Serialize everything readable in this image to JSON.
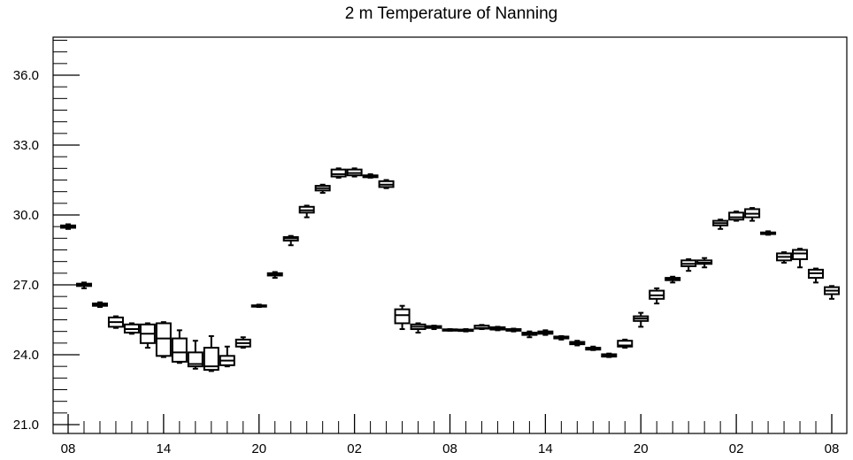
{
  "chart_data": {
    "type": "boxplot",
    "title": "2 m Temperature of Nanning",
    "xlabel": "",
    "ylabel": "",
    "ylim": [
      21.0,
      37.5
    ],
    "yticks": [
      21.0,
      24.0,
      27.0,
      30.0,
      33.0,
      36.0
    ],
    "ytick_labels": [
      "21.0",
      "24.0",
      "27.0",
      "30.0",
      "33.0",
      "36.0"
    ],
    "xlim": [
      0,
      48
    ],
    "xticks": [
      0,
      6,
      12,
      18,
      24,
      30,
      36,
      42,
      48
    ],
    "xtick_labels": [
      "08",
      "14",
      "20",
      "02",
      "08",
      "14",
      "20",
      "02",
      "08"
    ],
    "grid": false,
    "boxes": [
      {
        "x": 0,
        "min": 29.4,
        "q1": 29.45,
        "median": 29.5,
        "q3": 29.55,
        "max": 29.6
      },
      {
        "x": 1,
        "min": 26.85,
        "q1": 26.95,
        "median": 27.0,
        "q3": 27.05,
        "max": 27.1
      },
      {
        "x": 2,
        "min": 26.05,
        "q1": 26.1,
        "median": 26.15,
        "q3": 26.2,
        "max": 26.25
      },
      {
        "x": 3,
        "min": 25.15,
        "q1": 25.2,
        "median": 25.4,
        "q3": 25.6,
        "max": 25.65
      },
      {
        "x": 4,
        "min": 24.9,
        "q1": 24.95,
        "median": 25.1,
        "q3": 25.3,
        "max": 25.35
      },
      {
        "x": 5,
        "min": 24.3,
        "q1": 24.5,
        "median": 24.9,
        "q3": 25.3,
        "max": 25.35
      },
      {
        "x": 6,
        "min": 23.9,
        "q1": 23.95,
        "median": 24.7,
        "q3": 25.35,
        "max": 25.4
      },
      {
        "x": 7,
        "min": 23.65,
        "q1": 23.7,
        "median": 24.1,
        "q3": 24.7,
        "max": 25.05
      },
      {
        "x": 8,
        "min": 23.4,
        "q1": 23.5,
        "median": 23.6,
        "q3": 24.1,
        "max": 24.6
      },
      {
        "x": 9,
        "min": 23.3,
        "q1": 23.35,
        "median": 23.5,
        "q3": 24.3,
        "max": 24.8
      },
      {
        "x": 10,
        "min": 23.5,
        "q1": 23.55,
        "median": 23.75,
        "q3": 23.95,
        "max": 24.35
      },
      {
        "x": 11,
        "min": 24.3,
        "q1": 24.35,
        "median": 24.5,
        "q3": 24.65,
        "max": 24.75
      },
      {
        "x": 12,
        "min": 26.05,
        "q1": 26.08,
        "median": 26.1,
        "q3": 26.12,
        "max": 26.15
      },
      {
        "x": 13,
        "min": 27.3,
        "q1": 27.4,
        "median": 27.45,
        "q3": 27.5,
        "max": 27.55
      },
      {
        "x": 14,
        "min": 28.7,
        "q1": 28.9,
        "median": 29.0,
        "q3": 29.05,
        "max": 29.1
      },
      {
        "x": 15,
        "min": 29.9,
        "q1": 30.1,
        "median": 30.2,
        "q3": 30.35,
        "max": 30.4
      },
      {
        "x": 16,
        "min": 30.95,
        "q1": 31.05,
        "median": 31.15,
        "q3": 31.25,
        "max": 31.3
      },
      {
        "x": 17,
        "min": 31.6,
        "q1": 31.65,
        "median": 31.75,
        "q3": 31.95,
        "max": 32.0
      },
      {
        "x": 18,
        "min": 31.65,
        "q1": 31.7,
        "median": 31.8,
        "q3": 31.95,
        "max": 32.0
      },
      {
        "x": 19,
        "min": 31.6,
        "q1": 31.62,
        "median": 31.65,
        "q3": 31.7,
        "max": 31.75
      },
      {
        "x": 20,
        "min": 31.15,
        "q1": 31.2,
        "median": 31.3,
        "q3": 31.45,
        "max": 31.5
      },
      {
        "x": 21,
        "min": 25.1,
        "q1": 25.35,
        "median": 25.7,
        "q3": 25.95,
        "max": 26.1
      },
      {
        "x": 22,
        "min": 24.95,
        "q1": 25.1,
        "median": 25.2,
        "q3": 25.3,
        "max": 25.35
      },
      {
        "x": 23,
        "min": 25.1,
        "q1": 25.15,
        "median": 25.2,
        "q3": 25.23,
        "max": 25.25
      },
      {
        "x": 24,
        "min": 25.03,
        "q1": 25.05,
        "median": 25.07,
        "q3": 25.09,
        "max": 25.1
      },
      {
        "x": 25,
        "min": 25.0,
        "q1": 25.02,
        "median": 25.05,
        "q3": 25.08,
        "max": 25.1
      },
      {
        "x": 26,
        "min": 25.1,
        "q1": 25.12,
        "median": 25.15,
        "q3": 25.25,
        "max": 25.28
      },
      {
        "x": 27,
        "min": 25.05,
        "q1": 25.08,
        "median": 25.12,
        "q3": 25.18,
        "max": 25.2
      },
      {
        "x": 28,
        "min": 25.0,
        "q1": 25.03,
        "median": 25.05,
        "q3": 25.1,
        "max": 25.12
      },
      {
        "x": 29,
        "min": 24.75,
        "q1": 24.85,
        "median": 24.9,
        "q3": 24.95,
        "max": 25.0
      },
      {
        "x": 30,
        "min": 24.85,
        "q1": 24.9,
        "median": 24.95,
        "q3": 25.0,
        "max": 25.05
      },
      {
        "x": 31,
        "min": 24.65,
        "q1": 24.7,
        "median": 24.75,
        "q3": 24.78,
        "max": 24.8
      },
      {
        "x": 32,
        "min": 24.4,
        "q1": 24.45,
        "median": 24.5,
        "q3": 24.55,
        "max": 24.6
      },
      {
        "x": 33,
        "min": 24.2,
        "q1": 24.22,
        "median": 24.25,
        "q3": 24.3,
        "max": 24.35
      },
      {
        "x": 34,
        "min": 23.9,
        "q1": 23.92,
        "median": 23.95,
        "q3": 24.02,
        "max": 24.05
      },
      {
        "x": 35,
        "min": 24.3,
        "q1": 24.35,
        "median": 24.4,
        "q3": 24.6,
        "max": 24.65
      },
      {
        "x": 36,
        "min": 25.2,
        "q1": 25.45,
        "median": 25.55,
        "q3": 25.65,
        "max": 25.8
      },
      {
        "x": 37,
        "min": 26.2,
        "q1": 26.4,
        "median": 26.55,
        "q3": 26.75,
        "max": 26.85
      },
      {
        "x": 38,
        "min": 27.1,
        "q1": 27.2,
        "median": 27.25,
        "q3": 27.3,
        "max": 27.35
      },
      {
        "x": 39,
        "min": 27.6,
        "q1": 27.8,
        "median": 27.9,
        "q3": 28.05,
        "max": 28.1
      },
      {
        "x": 40,
        "min": 27.75,
        "q1": 27.9,
        "median": 27.95,
        "q3": 28.05,
        "max": 28.15
      },
      {
        "x": 41,
        "min": 29.4,
        "q1": 29.55,
        "median": 29.65,
        "q3": 29.75,
        "max": 29.8
      },
      {
        "x": 42,
        "min": 29.75,
        "q1": 29.8,
        "median": 29.9,
        "q3": 30.1,
        "max": 30.15
      },
      {
        "x": 43,
        "min": 29.75,
        "q1": 29.9,
        "median": 30.05,
        "q3": 30.25,
        "max": 30.3
      },
      {
        "x": 44,
        "min": 29.15,
        "q1": 29.18,
        "median": 29.2,
        "q3": 29.25,
        "max": 29.3
      },
      {
        "x": 45,
        "min": 27.95,
        "q1": 28.05,
        "median": 28.2,
        "q3": 28.35,
        "max": 28.4
      },
      {
        "x": 46,
        "min": 27.75,
        "q1": 28.1,
        "median": 28.35,
        "q3": 28.5,
        "max": 28.55
      },
      {
        "x": 47,
        "min": 27.1,
        "q1": 27.3,
        "median": 27.5,
        "q3": 27.65,
        "max": 27.7
      },
      {
        "x": 48,
        "min": 26.4,
        "q1": 26.6,
        "median": 26.75,
        "q3": 26.9,
        "max": 26.95
      }
    ]
  }
}
